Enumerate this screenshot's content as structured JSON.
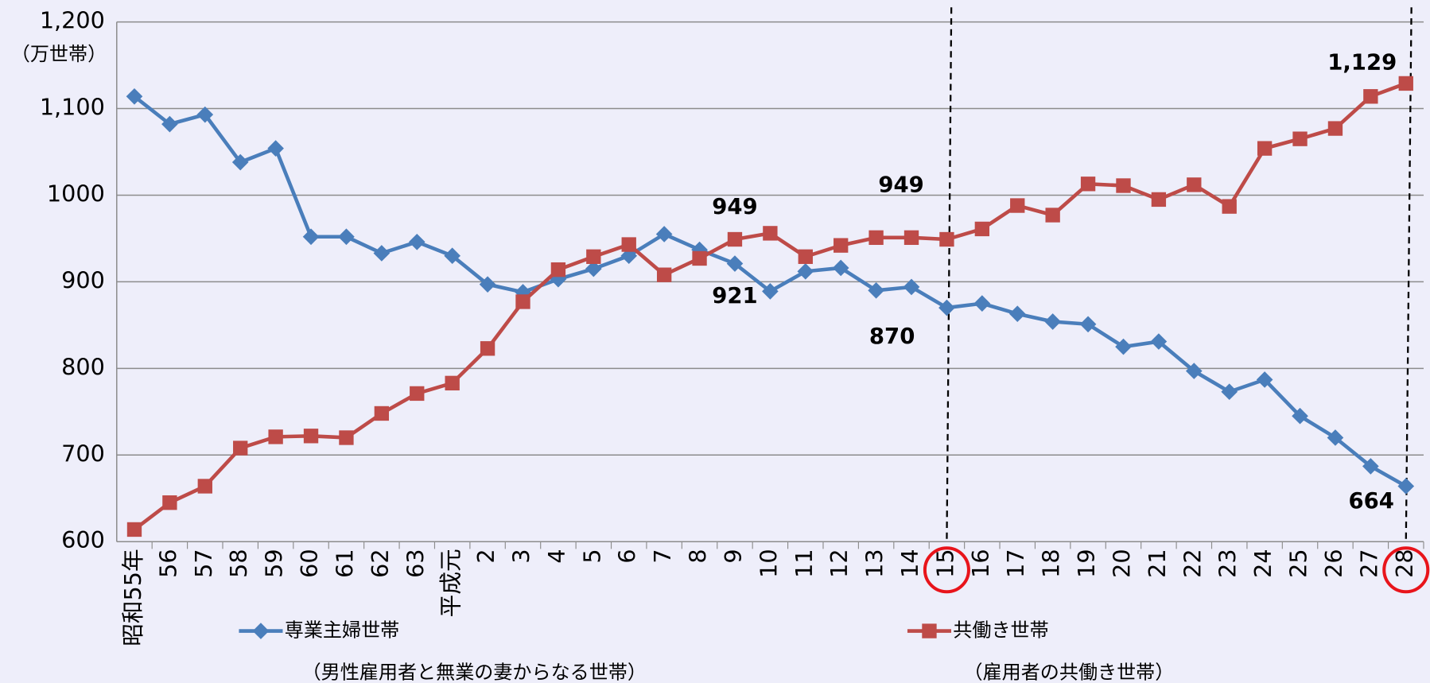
{
  "chart_data": {
    "type": "line",
    "y_label": "（万世帯）",
    "categories": [
      "昭和55年",
      "56",
      "57",
      "58",
      "59",
      "60",
      "61",
      "62",
      "63",
      "平成元",
      "2",
      "3",
      "4",
      "5",
      "6",
      "7",
      "8",
      "9",
      "10",
      "11",
      "12",
      "13",
      "14",
      "15",
      "16",
      "17",
      "18",
      "19",
      "20",
      "21",
      "22",
      "23",
      "24",
      "25",
      "26",
      "27",
      "28"
    ],
    "series": [
      {
        "name": "専業主婦世帯",
        "description": "（男性雇用者と無業の妻からなる世帯）",
        "color": "#4a7ebb",
        "marker": "diamond",
        "values": [
          1114,
          1082,
          1093,
          1038,
          1054,
          952,
          952,
          933,
          946,
          930,
          897,
          888,
          903,
          915,
          930,
          955,
          937,
          921,
          889,
          912,
          916,
          890,
          894,
          870,
          875,
          863,
          854,
          851,
          825,
          831,
          797,
          773,
          787,
          745,
          720,
          687,
          664
        ],
        "value_labels": [
          null,
          null,
          null,
          null,
          null,
          null,
          null,
          null,
          null,
          null,
          null,
          null,
          null,
          null,
          null,
          null,
          null,
          "921",
          null,
          null,
          null,
          null,
          null,
          "870",
          null,
          null,
          null,
          null,
          null,
          null,
          null,
          null,
          null,
          null,
          null,
          null,
          "664"
        ]
      },
      {
        "name": "共働き世帯",
        "description": "（雇用者の共働き世帯）",
        "color": "#be4b48",
        "marker": "square",
        "values": [
          614,
          645,
          664,
          708,
          721,
          722,
          720,
          748,
          771,
          783,
          823,
          877,
          914,
          929,
          943,
          908,
          927,
          949,
          956,
          929,
          942,
          951,
          951,
          949,
          961,
          988,
          977,
          1013,
          1011,
          995,
          1012,
          987,
          1054,
          1065,
          1077,
          1114,
          1129
        ],
        "value_labels": [
          null,
          null,
          null,
          null,
          null,
          null,
          null,
          null,
          null,
          null,
          null,
          null,
          null,
          null,
          null,
          null,
          null,
          "949",
          null,
          null,
          null,
          null,
          null,
          "949",
          null,
          null,
          null,
          null,
          null,
          null,
          null,
          null,
          null,
          null,
          null,
          null,
          "1,129"
        ]
      }
    ],
    "ylim": [
      600,
      1200
    ],
    "yticks": [
      600,
      700,
      800,
      900,
      1000,
      {
        "value": 1100,
        "label": "1,100"
      },
      {
        "value": 1200,
        "label": "1,200"
      }
    ],
    "grid": true,
    "highlight": [
      "15",
      "28"
    ]
  }
}
